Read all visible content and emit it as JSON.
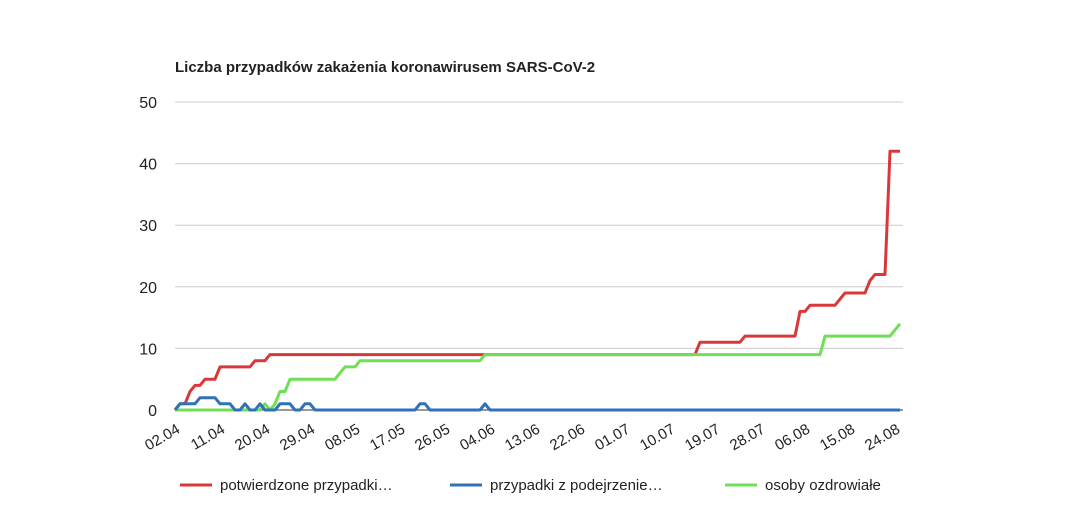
{
  "chart_data": {
    "type": "line",
    "title": "Liczba przypadków zakażenia koronawirusem SARS-CoV-2",
    "categories": [
      "02.04",
      null,
      null,
      null,
      null,
      null,
      null,
      null,
      null,
      "11.04",
      null,
      null,
      null,
      null,
      null,
      null,
      null,
      null,
      "20.04",
      null,
      null,
      null,
      null,
      null,
      null,
      null,
      null,
      "29.04",
      null,
      null,
      null,
      null,
      null,
      null,
      null,
      null,
      "08.05",
      null,
      null,
      null,
      null,
      null,
      null,
      null,
      null,
      "17.05",
      null,
      null,
      null,
      null,
      null,
      null,
      null,
      null,
      "26.05",
      null,
      null,
      null,
      null,
      null,
      null,
      null,
      null,
      "04.06",
      null,
      null,
      null,
      null,
      null,
      null,
      null,
      null,
      "13.06",
      null,
      null,
      null,
      null,
      null,
      null,
      null,
      null,
      "22.06",
      null,
      null,
      null,
      null,
      null,
      null,
      null,
      null,
      "01.07",
      null,
      null,
      null,
      null,
      null,
      null,
      null,
      null,
      "10.07",
      null,
      null,
      null,
      null,
      null,
      null,
      null,
      null,
      "19.07",
      null,
      null,
      null,
      null,
      null,
      null,
      null,
      null,
      "28.07",
      null,
      null,
      null,
      null,
      null,
      null,
      null,
      null,
      "06.08",
      null,
      null,
      null,
      null,
      null,
      null,
      null,
      null,
      "15.08",
      null,
      null,
      null,
      null,
      null,
      null,
      null,
      null,
      "24.08",
      null
    ],
    "series": [
      {
        "name": "potwierdzone przypadki…",
        "color": "#d9383a",
        "values": [
          0,
          1,
          1,
          3,
          4,
          4,
          5,
          5,
          5,
          7,
          7,
          7,
          7,
          7,
          7,
          7,
          8,
          8,
          8,
          9,
          9,
          9,
          9,
          9,
          9,
          9,
          9,
          9,
          9,
          9,
          9,
          9,
          9,
          9,
          9,
          9,
          9,
          9,
          9,
          9,
          9,
          9,
          9,
          9,
          9,
          9,
          9,
          9,
          9,
          9,
          9,
          9,
          9,
          9,
          9,
          9,
          9,
          9,
          9,
          9,
          9,
          9,
          9,
          9,
          9,
          9,
          9,
          9,
          9,
          9,
          9,
          9,
          9,
          9,
          9,
          9,
          9,
          9,
          9,
          9,
          9,
          9,
          9,
          9,
          9,
          9,
          9,
          9,
          9,
          9,
          9,
          9,
          9,
          9,
          9,
          9,
          9,
          9,
          9,
          9,
          9,
          9,
          9,
          9,
          9,
          11,
          11,
          11,
          11,
          11,
          11,
          11,
          11,
          11,
          12,
          12,
          12,
          12,
          12,
          12,
          12,
          12,
          12,
          12,
          12,
          16,
          16,
          17,
          17,
          17,
          17,
          17,
          17,
          18,
          19,
          19,
          19,
          19,
          19,
          21,
          22,
          22,
          22,
          42,
          42,
          42
        ]
      },
      {
        "name": "przypadki z podejrzenie…",
        "color": "#2f72b8",
        "values": [
          0,
          1,
          1,
          1,
          1,
          2,
          2,
          2,
          2,
          1,
          1,
          1,
          0,
          0,
          1,
          0,
          0,
          1,
          0,
          0,
          0,
          1,
          1,
          1,
          0,
          0,
          1,
          1,
          0,
          0,
          0,
          0,
          0,
          0,
          0,
          0,
          0,
          0,
          0,
          0,
          0,
          0,
          0,
          0,
          0,
          0,
          0,
          0,
          0,
          1,
          1,
          0,
          0,
          0,
          0,
          0,
          0,
          0,
          0,
          0,
          0,
          0,
          1,
          0,
          0,
          0,
          0,
          0,
          0,
          0,
          0,
          0,
          0,
          0,
          0,
          0,
          0,
          0,
          0,
          0,
          0,
          0,
          0,
          0,
          0,
          0,
          0,
          0,
          0,
          0,
          0,
          0,
          0,
          0,
          0,
          0,
          0,
          0,
          0,
          0,
          0,
          0,
          0,
          0,
          0,
          0,
          0,
          0,
          0,
          0,
          0,
          0,
          0,
          0,
          0,
          0,
          0,
          0,
          0,
          0,
          0,
          0,
          0,
          0,
          0,
          0,
          0,
          0,
          0,
          0,
          0,
          0,
          0,
          0,
          0,
          0,
          0,
          0,
          0,
          0,
          0,
          0,
          0,
          0,
          0,
          0
        ]
      },
      {
        "name": "osoby ozdrowiałe",
        "color": "#6ee055",
        "values": [
          0,
          0,
          0,
          0,
          0,
          0,
          0,
          0,
          0,
          0,
          0,
          0,
          0,
          0,
          0,
          0,
          0,
          0,
          1,
          0,
          1,
          3,
          3,
          5,
          5,
          5,
          5,
          5,
          5,
          5,
          5,
          5,
          5,
          6,
          7,
          7,
          7,
          8,
          8,
          8,
          8,
          8,
          8,
          8,
          8,
          8,
          8,
          8,
          8,
          8,
          8,
          8,
          8,
          8,
          8,
          8,
          8,
          8,
          8,
          8,
          8,
          8,
          9,
          9,
          9,
          9,
          9,
          9,
          9,
          9,
          9,
          9,
          9,
          9,
          9,
          9,
          9,
          9,
          9,
          9,
          9,
          9,
          9,
          9,
          9,
          9,
          9,
          9,
          9,
          9,
          9,
          9,
          9,
          9,
          9,
          9,
          9,
          9,
          9,
          9,
          9,
          9,
          9,
          9,
          9,
          9,
          9,
          9,
          9,
          9,
          9,
          9,
          9,
          9,
          9,
          9,
          9,
          9,
          9,
          9,
          9,
          9,
          9,
          9,
          9,
          9,
          9,
          9,
          9,
          9,
          12,
          12,
          12,
          12,
          12,
          12,
          12,
          12,
          12,
          12,
          12,
          12,
          12,
          12,
          13,
          14
        ]
      }
    ],
    "ylim": [
      0,
      50
    ],
    "yticks": [
      0,
      10,
      20,
      30,
      40,
      50
    ],
    "grid": true
  }
}
